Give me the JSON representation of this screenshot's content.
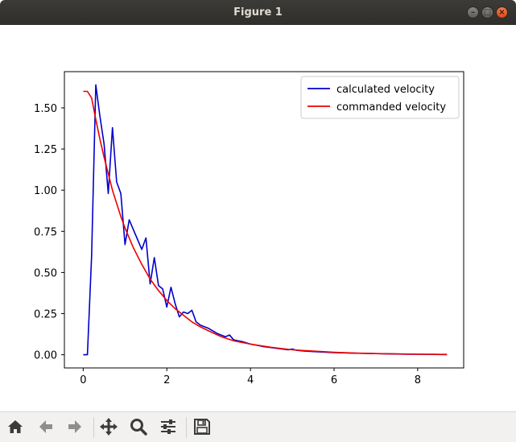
{
  "window": {
    "title": "Figure 1",
    "min_glyph": "–",
    "max_glyph": "□",
    "close_glyph": "×"
  },
  "toolbar": {
    "buttons": [
      {
        "name": "home-button",
        "icon": "home-icon"
      },
      {
        "name": "back-button",
        "icon": "arrow-left-icon"
      },
      {
        "name": "forward-button",
        "icon": "arrow-right-icon"
      },
      {
        "name": "pan-button",
        "icon": "move-arrows-icon"
      },
      {
        "name": "zoom-button",
        "icon": "magnifier-icon"
      },
      {
        "name": "configure-subplots-button",
        "icon": "sliders-icon"
      },
      {
        "name": "save-button",
        "icon": "floppy-disk-icon"
      }
    ]
  },
  "chart_data": {
    "type": "line",
    "title": "",
    "xlabel": "",
    "ylabel": "",
    "xlim": [
      -0.45,
      9.1
    ],
    "ylim": [
      -0.08,
      1.72
    ],
    "xticks": [
      0,
      2,
      4,
      6,
      8
    ],
    "xtick_labels": [
      "0",
      "2",
      "4",
      "6",
      "8"
    ],
    "yticks": [
      0.0,
      0.25,
      0.5,
      0.75,
      1.0,
      1.25,
      1.5
    ],
    "ytick_labels": [
      "0.00",
      "0.25",
      "0.50",
      "0.75",
      "1.00",
      "1.25",
      "1.50"
    ],
    "grid": false,
    "legend_position": "upper right",
    "series": [
      {
        "name": "calculated velocity",
        "color": "#0000cc",
        "x": [
          0.0,
          0.1,
          0.2,
          0.3,
          0.4,
          0.5,
          0.6,
          0.7,
          0.8,
          0.9,
          1.0,
          1.1,
          1.2,
          1.3,
          1.4,
          1.5,
          1.6,
          1.7,
          1.8,
          1.9,
          2.0,
          2.1,
          2.2,
          2.3,
          2.4,
          2.5,
          2.6,
          2.7,
          2.8,
          3.0,
          3.2,
          3.4,
          3.5,
          3.6,
          3.8,
          4.0,
          4.3,
          4.6,
          4.9,
          5.0,
          5.1,
          5.3,
          5.6,
          6.0,
          6.4,
          6.8,
          7.2,
          7.6,
          8.0,
          8.4,
          8.7
        ],
        "y": [
          0.0,
          0.0,
          0.6,
          1.64,
          1.45,
          1.28,
          0.98,
          1.38,
          1.05,
          0.98,
          0.67,
          0.82,
          0.76,
          0.7,
          0.64,
          0.71,
          0.43,
          0.59,
          0.42,
          0.4,
          0.29,
          0.41,
          0.31,
          0.23,
          0.26,
          0.25,
          0.27,
          0.2,
          0.18,
          0.16,
          0.13,
          0.11,
          0.12,
          0.09,
          0.08,
          0.065,
          0.05,
          0.04,
          0.03,
          0.035,
          0.027,
          0.022,
          0.018,
          0.013,
          0.01,
          0.008,
          0.006,
          0.004,
          0.003,
          0.002,
          0.001
        ]
      },
      {
        "name": "commanded velocity",
        "color": "#ee0000",
        "x": [
          0.0,
          0.1,
          0.2,
          0.3,
          0.4,
          0.5,
          0.6,
          0.7,
          0.8,
          0.9,
          1.0,
          1.2,
          1.4,
          1.6,
          1.8,
          2.0,
          2.2,
          2.4,
          2.6,
          2.8,
          3.0,
          3.3,
          3.6,
          4.0,
          4.5,
          5.0,
          5.5,
          6.0,
          6.5,
          7.0,
          7.5,
          8.0,
          8.7
        ],
        "y": [
          1.6,
          1.6,
          1.56,
          1.43,
          1.31,
          1.2,
          1.1,
          1.0,
          0.92,
          0.84,
          0.77,
          0.65,
          0.55,
          0.46,
          0.39,
          0.33,
          0.28,
          0.24,
          0.2,
          0.17,
          0.145,
          0.11,
          0.085,
          0.065,
          0.045,
          0.03,
          0.022,
          0.015,
          0.01,
          0.007,
          0.005,
          0.003,
          0.002
        ]
      }
    ]
  }
}
